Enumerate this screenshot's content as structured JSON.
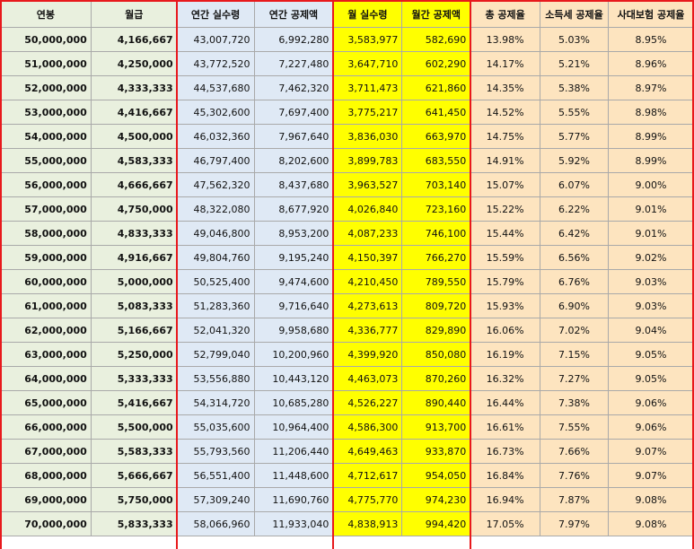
{
  "columns": [
    "연봉",
    "월급",
    "연간 실수령",
    "연간 공제액",
    "월 실수령",
    "월간 공제액",
    "총 공제율",
    "소득세 공제율",
    "사대보험 공제율"
  ],
  "rows": [
    [
      "50,000,000",
      "4,166,667",
      "43,007,720",
      "6,992,280",
      "3,583,977",
      "582,690",
      "13.98%",
      "5.03%",
      "8.95%"
    ],
    [
      "51,000,000",
      "4,250,000",
      "43,772,520",
      "7,227,480",
      "3,647,710",
      "602,290",
      "14.17%",
      "5.21%",
      "8.96%"
    ],
    [
      "52,000,000",
      "4,333,333",
      "44,537,680",
      "7,462,320",
      "3,711,473",
      "621,860",
      "14.35%",
      "5.38%",
      "8.97%"
    ],
    [
      "53,000,000",
      "4,416,667",
      "45,302,600",
      "7,697,400",
      "3,775,217",
      "641,450",
      "14.52%",
      "5.55%",
      "8.98%"
    ],
    [
      "54,000,000",
      "4,500,000",
      "46,032,360",
      "7,967,640",
      "3,836,030",
      "663,970",
      "14.75%",
      "5.77%",
      "8.99%"
    ],
    [
      "55,000,000",
      "4,583,333",
      "46,797,400",
      "8,202,600",
      "3,899,783",
      "683,550",
      "14.91%",
      "5.92%",
      "8.99%"
    ],
    [
      "56,000,000",
      "4,666,667",
      "47,562,320",
      "8,437,680",
      "3,963,527",
      "703,140",
      "15.07%",
      "6.07%",
      "9.00%"
    ],
    [
      "57,000,000",
      "4,750,000",
      "48,322,080",
      "8,677,920",
      "4,026,840",
      "723,160",
      "15.22%",
      "6.22%",
      "9.01%"
    ],
    [
      "58,000,000",
      "4,833,333",
      "49,046,800",
      "8,953,200",
      "4,087,233",
      "746,100",
      "15.44%",
      "6.42%",
      "9.01%"
    ],
    [
      "59,000,000",
      "4,916,667",
      "49,804,760",
      "9,195,240",
      "4,150,397",
      "766,270",
      "15.59%",
      "6.56%",
      "9.02%"
    ],
    [
      "60,000,000",
      "5,000,000",
      "50,525,400",
      "9,474,600",
      "4,210,450",
      "789,550",
      "15.79%",
      "6.76%",
      "9.03%"
    ],
    [
      "61,000,000",
      "5,083,333",
      "51,283,360",
      "9,716,640",
      "4,273,613",
      "809,720",
      "15.93%",
      "6.90%",
      "9.03%"
    ],
    [
      "62,000,000",
      "5,166,667",
      "52,041,320",
      "9,958,680",
      "4,336,777",
      "829,890",
      "16.06%",
      "7.02%",
      "9.04%"
    ],
    [
      "63,000,000",
      "5,250,000",
      "52,799,040",
      "10,200,960",
      "4,399,920",
      "850,080",
      "16.19%",
      "7.15%",
      "9.05%"
    ],
    [
      "64,000,000",
      "5,333,333",
      "53,556,880",
      "10,443,120",
      "4,463,073",
      "870,260",
      "16.32%",
      "7.27%",
      "9.05%"
    ],
    [
      "65,000,000",
      "5,416,667",
      "54,314,720",
      "10,685,280",
      "4,526,227",
      "890,440",
      "16.44%",
      "7.38%",
      "9.06%"
    ],
    [
      "66,000,000",
      "5,500,000",
      "55,035,600",
      "10,964,400",
      "4,586,300",
      "913,700",
      "16.61%",
      "7.55%",
      "9.06%"
    ],
    [
      "67,000,000",
      "5,583,333",
      "55,793,560",
      "11,206,440",
      "4,649,463",
      "933,870",
      "16.73%",
      "7.66%",
      "9.07%"
    ],
    [
      "68,000,000",
      "5,666,667",
      "56,551,400",
      "11,448,600",
      "4,712,617",
      "954,050",
      "16.84%",
      "7.76%",
      "9.07%"
    ],
    [
      "69,000,000",
      "5,750,000",
      "57,309,240",
      "11,690,760",
      "4,775,770",
      "974,230",
      "16.94%",
      "7.87%",
      "9.08%"
    ],
    [
      "70,000,000",
      "5,833,333",
      "58,066,960",
      "11,933,040",
      "4,838,913",
      "994,420",
      "17.05%",
      "7.97%",
      "9.08%"
    ]
  ],
  "colors": {
    "salary_bg": "#e9f0de",
    "annual_bg": "#dfe9f5",
    "monthly_bg": "#ffff00",
    "rate_bg": "#fde4bf",
    "frame": "#e8191c"
  }
}
